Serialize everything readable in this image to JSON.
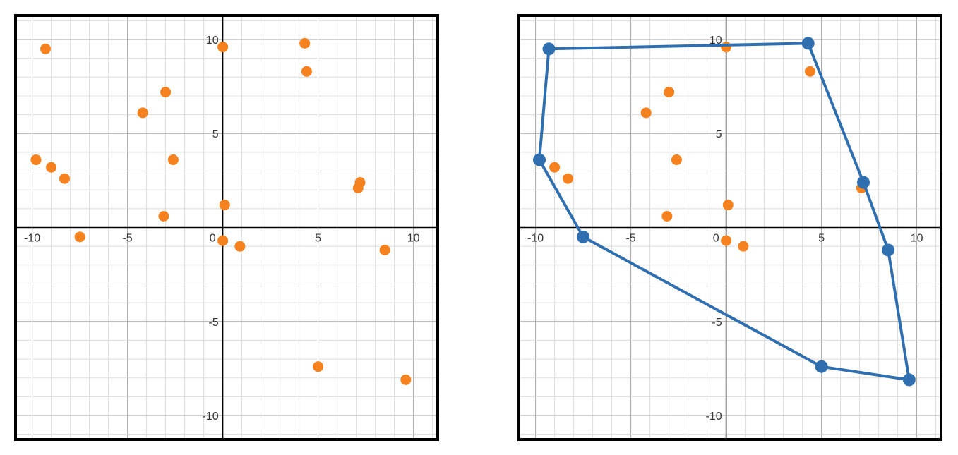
{
  "colors": {
    "points": "#f6811f",
    "hull": "#2f6fb0",
    "axis": "#000000",
    "grid_major": "#a6a6a6",
    "grid_minor": "#dcdcdc"
  },
  "axis_ticks": {
    "x": [
      {
        "value": -10,
        "label": "-10"
      },
      {
        "value": -5,
        "label": "-5"
      },
      {
        "value": 0,
        "label": "0"
      },
      {
        "value": 5,
        "label": "5"
      },
      {
        "value": 10,
        "label": "10"
      }
    ],
    "y": [
      {
        "value": 10,
        "label": "10"
      },
      {
        "value": 5,
        "label": "5"
      },
      {
        "value": -5,
        "label": "-5"
      },
      {
        "value": -10,
        "label": "-10"
      }
    ]
  },
  "chart_data": [
    {
      "type": "scatter",
      "title": "",
      "xlabel": "",
      "ylabel": "",
      "xlim": [
        -10.8,
        11.2
      ],
      "ylim": [
        -11.2,
        11.2
      ],
      "grid": true,
      "grid_step_minor": 1,
      "grid_step_major": 5,
      "points": [
        {
          "x": -9.3,
          "y": 9.5
        },
        {
          "x": 0,
          "y": 9.6
        },
        {
          "x": 4.3,
          "y": 9.8
        },
        {
          "x": 4.4,
          "y": 8.3
        },
        {
          "x": -3,
          "y": 7.2
        },
        {
          "x": -4.2,
          "y": 6.1
        },
        {
          "x": -9.8,
          "y": 3.6
        },
        {
          "x": -9,
          "y": 3.2
        },
        {
          "x": -8.3,
          "y": 2.6
        },
        {
          "x": -2.6,
          "y": 3.6
        },
        {
          "x": 7.2,
          "y": 2.4
        },
        {
          "x": 7.1,
          "y": 2.1
        },
        {
          "x": 0.1,
          "y": 1.2
        },
        {
          "x": -3.1,
          "y": 0.6
        },
        {
          "x": -7.5,
          "y": -0.5
        },
        {
          "x": 0,
          "y": -0.7
        },
        {
          "x": 0.9,
          "y": -1
        },
        {
          "x": 8.5,
          "y": -1.2
        },
        {
          "x": 5,
          "y": -7.4
        },
        {
          "x": 9.6,
          "y": -8.1
        }
      ]
    },
    {
      "type": "scatter",
      "title": "",
      "xlabel": "",
      "ylabel": "",
      "xlim": [
        -10.8,
        11.2
      ],
      "ylim": [
        -11.2,
        11.2
      ],
      "grid": true,
      "grid_step_minor": 1,
      "grid_step_major": 5,
      "points": [
        {
          "x": -9.3,
          "y": 9.5
        },
        {
          "x": 0,
          "y": 9.6
        },
        {
          "x": 4.3,
          "y": 9.8
        },
        {
          "x": 4.4,
          "y": 8.3
        },
        {
          "x": -3,
          "y": 7.2
        },
        {
          "x": -4.2,
          "y": 6.1
        },
        {
          "x": -9.8,
          "y": 3.6
        },
        {
          "x": -9,
          "y": 3.2
        },
        {
          "x": -8.3,
          "y": 2.6
        },
        {
          "x": -2.6,
          "y": 3.6
        },
        {
          "x": 7.2,
          "y": 2.4
        },
        {
          "x": 7.1,
          "y": 2.1
        },
        {
          "x": 0.1,
          "y": 1.2
        },
        {
          "x": -3.1,
          "y": 0.6
        },
        {
          "x": -7.5,
          "y": -0.5
        },
        {
          "x": 0,
          "y": -0.7
        },
        {
          "x": 0.9,
          "y": -1
        },
        {
          "x": 8.5,
          "y": -1.2
        },
        {
          "x": 5,
          "y": -7.4
        },
        {
          "x": 9.6,
          "y": -8.1
        }
      ],
      "hull": [
        {
          "x": -9.3,
          "y": 9.5
        },
        {
          "x": 4.3,
          "y": 9.8
        },
        {
          "x": 7.2,
          "y": 2.4
        },
        {
          "x": 8.5,
          "y": -1.2
        },
        {
          "x": 9.6,
          "y": -8.1
        },
        {
          "x": 5,
          "y": -7.4
        },
        {
          "x": -7.5,
          "y": -0.5
        },
        {
          "x": -9.8,
          "y": 3.6
        }
      ]
    }
  ]
}
